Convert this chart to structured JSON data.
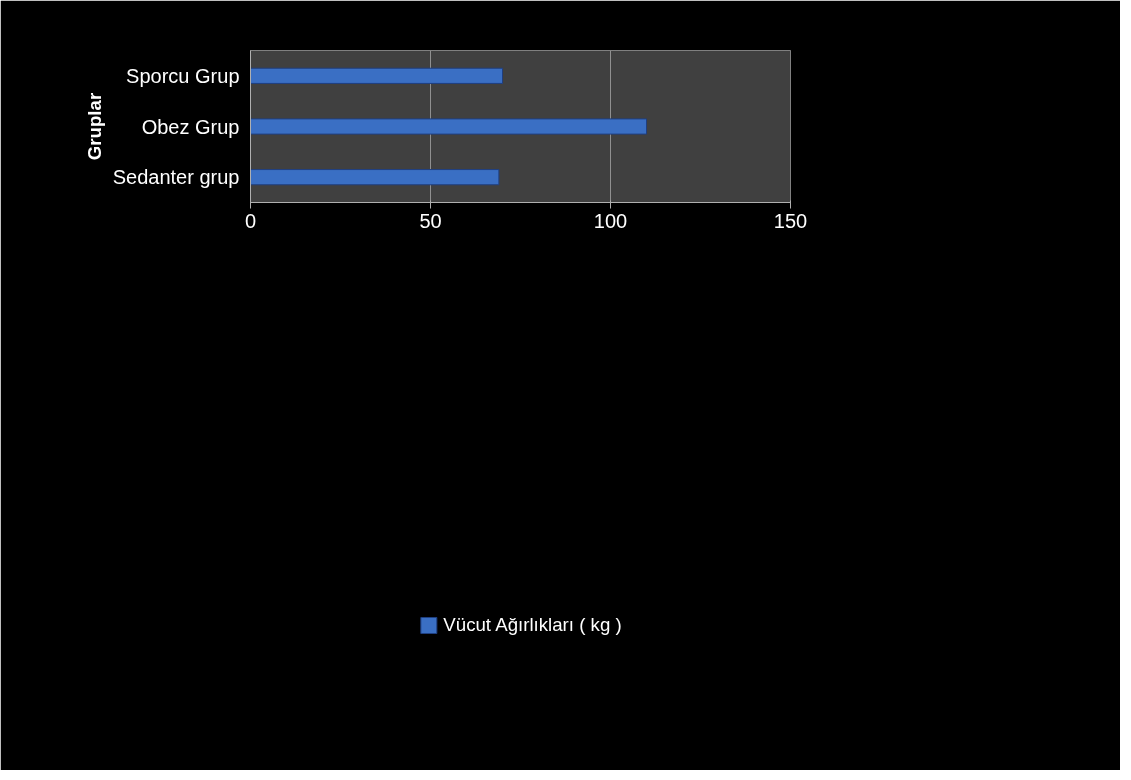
{
  "chart_data": {
    "type": "bar",
    "orientation": "horizontal",
    "ylabel": "Gruplar",
    "categories": [
      "Sporcu Grup",
      "Obez Grup",
      "Sedanter grup"
    ],
    "series": [
      {
        "name": "Vücut Ağırlıkları ( kg )",
        "color": "#3a6fc4",
        "values": [
          70,
          110,
          69
        ]
      }
    ],
    "xlim": [
      0,
      150
    ],
    "xticks": [
      0,
      50,
      100,
      150
    ],
    "grid": "x",
    "legend": "bottom"
  }
}
